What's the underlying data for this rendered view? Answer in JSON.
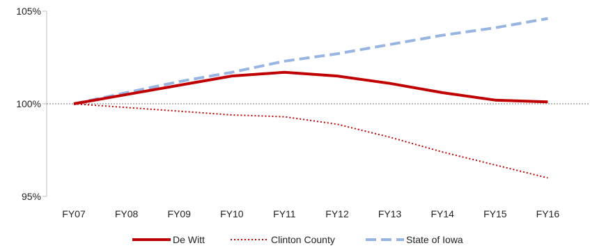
{
  "chart_data": {
    "type": "line",
    "title": "",
    "xlabel": "",
    "ylabel": "",
    "categories": [
      "FY07",
      "FY08",
      "FY09",
      "FY10",
      "FY11",
      "FY12",
      "FY13",
      "FY14",
      "FY15",
      "FY16"
    ],
    "ylim": [
      95,
      105
    ],
    "yticks": [
      95,
      100,
      105
    ],
    "ytick_labels": [
      "95%",
      "100%",
      "105%"
    ],
    "reference_line": 100,
    "grid": false,
    "legend_position": "bottom",
    "series": [
      {
        "name": "De Witt",
        "values": [
          100,
          100.5,
          101.0,
          101.5,
          101.7,
          101.5,
          101.1,
          100.6,
          100.2,
          100.1
        ],
        "color": "#c00000",
        "style": "solid"
      },
      {
        "name": "Clinton County",
        "values": [
          100,
          99.8,
          99.6,
          99.4,
          99.3,
          98.9,
          98.2,
          97.4,
          96.7,
          96.0
        ],
        "color": "#c00000",
        "style": "dotted"
      },
      {
        "name": "State of Iowa",
        "values": [
          100,
          100.6,
          101.2,
          101.7,
          102.3,
          102.7,
          103.2,
          103.7,
          104.1,
          104.6
        ],
        "color": "#98b4e0",
        "style": "dashed"
      }
    ]
  }
}
